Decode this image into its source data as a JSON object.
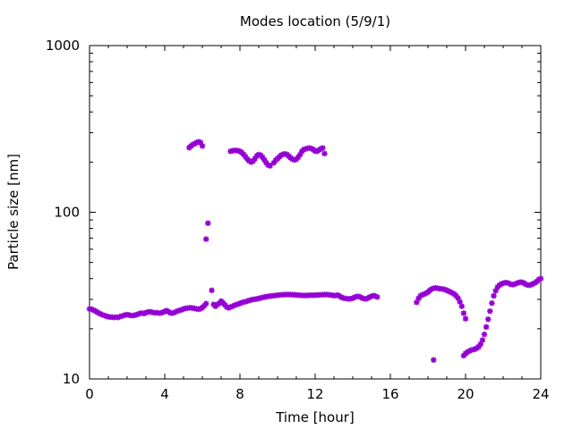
{
  "chart_data": {
    "type": "scatter",
    "title": "Modes location (5/9/1)",
    "xlabel": "Time [hour]",
    "ylabel": "Particle size [nm]",
    "xlim": [
      0,
      24
    ],
    "ylim": [
      10,
      1000
    ],
    "yscale": "log",
    "grid": false,
    "legend": "none",
    "marker": "star",
    "color": "#9400d3",
    "x_ticks": [
      0,
      4,
      8,
      12,
      16,
      20,
      24
    ],
    "x_tick_labels": [
      "0",
      "4",
      "8",
      "12",
      "16",
      "20",
      "24"
    ],
    "y_ticks": [
      10,
      100,
      1000
    ],
    "y_tick_labels": [
      "10",
      "100",
      "1000"
    ],
    "series": [
      {
        "points": [
          [
            0.0,
            26.3
          ],
          [
            0.1,
            26.2
          ],
          [
            0.2,
            25.9
          ],
          [
            0.3,
            25.6
          ],
          [
            0.4,
            25.2
          ],
          [
            0.5,
            24.8
          ],
          [
            0.6,
            24.5
          ],
          [
            0.7,
            24.2
          ],
          [
            0.8,
            24.0
          ],
          [
            0.9,
            23.8
          ],
          [
            1.0,
            23.6
          ],
          [
            1.1,
            23.5
          ],
          [
            1.2,
            23.5
          ],
          [
            1.3,
            23.4
          ],
          [
            1.4,
            23.5
          ],
          [
            1.5,
            23.4
          ],
          [
            1.6,
            23.6
          ],
          [
            1.7,
            23.8
          ],
          [
            1.8,
            24.0
          ],
          [
            1.9,
            24.2
          ],
          [
            2.0,
            24.3
          ],
          [
            2.1,
            24.2
          ],
          [
            2.2,
            24.0
          ],
          [
            2.3,
            24.0
          ],
          [
            2.4,
            24.1
          ],
          [
            2.5,
            24.3
          ],
          [
            2.6,
            24.5
          ],
          [
            2.7,
            24.8
          ],
          [
            2.8,
            24.8
          ],
          [
            2.9,
            24.7
          ],
          [
            3.0,
            25.0
          ],
          [
            3.1,
            25.2
          ],
          [
            3.2,
            25.3
          ],
          [
            3.3,
            25.2
          ],
          [
            3.4,
            25.0
          ],
          [
            3.5,
            24.9
          ],
          [
            3.6,
            25.0
          ],
          [
            3.7,
            24.8
          ],
          [
            3.8,
            24.9
          ],
          [
            3.9,
            25.1
          ],
          [
            4.0,
            25.4
          ],
          [
            4.1,
            25.7
          ],
          [
            4.2,
            25.3
          ],
          [
            4.3,
            24.9
          ],
          [
            4.4,
            24.8
          ],
          [
            4.5,
            25.0
          ],
          [
            4.6,
            25.3
          ],
          [
            4.7,
            25.6
          ],
          [
            4.8,
            25.8
          ],
          [
            4.9,
            26.0
          ],
          [
            5.0,
            26.3
          ],
          [
            5.1,
            26.5
          ],
          [
            5.2,
            26.6
          ],
          [
            5.3,
            26.7
          ],
          [
            5.4,
            26.7
          ],
          [
            5.5,
            26.6
          ],
          [
            5.6,
            26.5
          ],
          [
            5.7,
            26.3
          ],
          [
            5.8,
            26.2
          ],
          [
            5.9,
            26.4
          ],
          [
            6.0,
            26.8
          ],
          [
            6.1,
            27.5
          ],
          [
            6.2,
            28.3
          ],
          [
            6.5,
            34.0
          ],
          [
            6.6,
            28.0
          ],
          [
            6.7,
            27.3
          ],
          [
            6.8,
            28.0
          ],
          [
            6.9,
            28.4
          ],
          [
            7.0,
            29.3
          ],
          [
            7.1,
            28.6
          ],
          [
            7.2,
            27.8
          ],
          [
            7.3,
            27.0
          ],
          [
            7.4,
            26.7
          ],
          [
            7.5,
            27.0
          ],
          [
            7.6,
            27.3
          ],
          [
            7.7,
            27.6
          ],
          [
            7.8,
            27.9
          ],
          [
            7.9,
            28.1
          ],
          [
            8.0,
            28.4
          ],
          [
            8.1,
            28.7
          ],
          [
            8.2,
            28.9
          ],
          [
            8.3,
            29.1
          ],
          [
            8.4,
            29.3
          ],
          [
            8.5,
            29.6
          ],
          [
            8.6,
            29.8
          ],
          [
            8.7,
            30.0
          ],
          [
            8.8,
            30.1
          ],
          [
            8.9,
            30.2
          ],
          [
            9.0,
            30.4
          ],
          [
            9.1,
            30.6
          ],
          [
            9.2,
            30.8
          ],
          [
            9.3,
            31.0
          ],
          [
            9.4,
            31.1
          ],
          [
            9.5,
            31.3
          ],
          [
            9.6,
            31.4
          ],
          [
            9.7,
            31.5
          ],
          [
            9.8,
            31.6
          ],
          [
            9.9,
            31.7
          ],
          [
            10.0,
            31.8
          ],
          [
            10.1,
            31.9
          ],
          [
            10.2,
            32.0
          ],
          [
            10.3,
            32.0
          ],
          [
            10.4,
            32.1
          ],
          [
            10.5,
            32.1
          ],
          [
            10.6,
            32.1
          ],
          [
            10.7,
            32.1
          ],
          [
            10.8,
            32.0
          ],
          [
            10.9,
            32.0
          ],
          [
            11.0,
            31.9
          ],
          [
            11.1,
            31.8
          ],
          [
            11.2,
            31.8
          ],
          [
            11.3,
            31.7
          ],
          [
            11.4,
            31.7
          ],
          [
            11.5,
            31.7
          ],
          [
            11.6,
            31.7
          ],
          [
            11.7,
            31.8
          ],
          [
            11.8,
            31.8
          ],
          [
            11.9,
            31.8
          ],
          [
            12.0,
            31.8
          ],
          [
            12.1,
            31.9
          ],
          [
            12.2,
            31.9
          ],
          [
            12.3,
            32.0
          ],
          [
            12.4,
            32.0
          ],
          [
            12.5,
            32.1
          ],
          [
            12.6,
            32.1
          ],
          [
            12.7,
            32.0
          ],
          [
            12.8,
            31.9
          ],
          [
            12.9,
            31.8
          ],
          [
            13.0,
            31.6
          ],
          [
            13.1,
            31.7
          ],
          [
            13.2,
            31.9
          ],
          [
            13.3,
            31.4
          ],
          [
            13.4,
            30.9
          ],
          [
            13.5,
            30.6
          ],
          [
            13.6,
            30.4
          ],
          [
            13.7,
            30.3
          ],
          [
            13.8,
            30.2
          ],
          [
            13.9,
            30.3
          ],
          [
            14.0,
            30.5
          ],
          [
            14.1,
            30.9
          ],
          [
            14.2,
            31.2
          ],
          [
            14.3,
            31.3
          ],
          [
            14.4,
            31.0
          ],
          [
            14.5,
            30.6
          ],
          [
            14.6,
            30.3
          ],
          [
            14.7,
            30.2
          ],
          [
            14.8,
            30.5
          ],
          [
            14.9,
            31.0
          ],
          [
            15.0,
            31.3
          ],
          [
            15.1,
            31.6
          ],
          [
            15.2,
            31.4
          ],
          [
            15.3,
            31.0
          ],
          [
            17.4,
            28.8
          ],
          [
            17.5,
            30.4
          ],
          [
            17.6,
            31.5
          ],
          [
            17.7,
            32.0
          ],
          [
            17.8,
            32.3
          ],
          [
            17.9,
            32.7
          ],
          [
            18.0,
            33.2
          ],
          [
            18.1,
            34.0
          ],
          [
            18.2,
            34.6
          ],
          [
            18.3,
            35.0
          ],
          [
            18.4,
            35.2
          ],
          [
            18.5,
            35.0
          ],
          [
            18.6,
            34.8
          ],
          [
            18.7,
            34.7
          ],
          [
            18.8,
            34.6
          ],
          [
            18.9,
            34.4
          ],
          [
            19.0,
            34.0
          ],
          [
            19.1,
            33.6
          ],
          [
            19.2,
            33.2
          ],
          [
            19.3,
            32.8
          ],
          [
            19.4,
            32.3
          ],
          [
            19.5,
            31.5
          ],
          [
            19.6,
            30.5
          ],
          [
            19.7,
            29.0
          ],
          [
            19.8,
            27.3
          ],
          [
            19.9,
            24.8
          ],
          [
            20.0,
            23.0
          ],
          [
            18.3,
            13.0
          ],
          [
            19.9,
            13.8
          ],
          [
            20.0,
            14.2
          ],
          [
            20.1,
            14.5
          ],
          [
            20.2,
            14.7
          ],
          [
            20.3,
            14.9
          ],
          [
            20.4,
            15.0
          ],
          [
            20.5,
            15.1
          ],
          [
            20.6,
            15.3
          ],
          [
            20.7,
            15.6
          ],
          [
            20.8,
            16.2
          ],
          [
            20.9,
            17.1
          ],
          [
            21.0,
            18.5
          ],
          [
            21.1,
            20.5
          ],
          [
            21.2,
            22.8
          ],
          [
            21.3,
            25.5
          ],
          [
            21.4,
            28.5
          ],
          [
            21.5,
            31.5
          ],
          [
            21.6,
            33.8
          ],
          [
            21.7,
            35.5
          ],
          [
            21.8,
            36.5
          ],
          [
            21.9,
            37.1
          ],
          [
            22.0,
            37.5
          ],
          [
            22.1,
            37.8
          ],
          [
            22.2,
            37.8
          ],
          [
            22.3,
            37.5
          ],
          [
            22.4,
            37.0
          ],
          [
            22.5,
            36.8
          ],
          [
            22.6,
            37.0
          ],
          [
            22.7,
            37.4
          ],
          [
            22.8,
            37.8
          ],
          [
            22.9,
            38.0
          ],
          [
            23.0,
            38.0
          ],
          [
            23.1,
            37.6
          ],
          [
            23.2,
            37.0
          ],
          [
            23.3,
            36.6
          ],
          [
            23.4,
            36.5
          ],
          [
            23.5,
            36.8
          ],
          [
            23.6,
            37.3
          ],
          [
            23.7,
            37.8
          ],
          [
            23.8,
            38.5
          ],
          [
            23.9,
            39.5
          ],
          [
            24.0,
            40.0
          ],
          [
            5.3,
            244
          ],
          [
            5.4,
            250
          ],
          [
            5.5,
            255
          ],
          [
            5.6,
            258
          ],
          [
            5.7,
            262
          ],
          [
            5.8,
            265
          ],
          [
            5.9,
            262
          ],
          [
            6.0,
            250
          ],
          [
            6.2,
            69
          ],
          [
            6.3,
            86
          ],
          [
            7.5,
            232
          ],
          [
            7.6,
            234
          ],
          [
            7.7,
            235
          ],
          [
            7.8,
            235
          ],
          [
            7.9,
            234
          ],
          [
            8.0,
            232
          ],
          [
            8.1,
            228
          ],
          [
            8.2,
            222
          ],
          [
            8.3,
            215
          ],
          [
            8.4,
            208
          ],
          [
            8.5,
            203
          ],
          [
            8.6,
            200
          ],
          [
            8.7,
            203
          ],
          [
            8.8,
            210
          ],
          [
            8.9,
            218
          ],
          [
            9.0,
            222
          ],
          [
            9.1,
            220
          ],
          [
            9.2,
            214
          ],
          [
            9.3,
            206
          ],
          [
            9.4,
            198
          ],
          [
            9.5,
            192
          ],
          [
            9.6,
            190
          ],
          [
            9.8,
            198
          ],
          [
            9.9,
            205
          ],
          [
            10.0,
            210
          ],
          [
            10.1,
            215
          ],
          [
            10.2,
            220
          ],
          [
            10.3,
            223
          ],
          [
            10.4,
            224
          ],
          [
            10.5,
            222
          ],
          [
            10.6,
            217
          ],
          [
            10.7,
            212
          ],
          [
            10.8,
            208
          ],
          [
            10.9,
            206
          ],
          [
            11.0,
            208
          ],
          [
            11.1,
            214
          ],
          [
            11.2,
            222
          ],
          [
            11.3,
            232
          ],
          [
            11.4,
            238
          ],
          [
            11.5,
            240
          ],
          [
            11.6,
            242
          ],
          [
            11.7,
            243
          ],
          [
            11.8,
            241
          ],
          [
            11.9,
            238
          ],
          [
            12.0,
            233
          ],
          [
            12.1,
            232
          ],
          [
            12.2,
            236
          ],
          [
            12.3,
            240
          ],
          [
            12.4,
            243
          ],
          [
            12.5,
            225
          ]
        ]
      }
    ]
  }
}
